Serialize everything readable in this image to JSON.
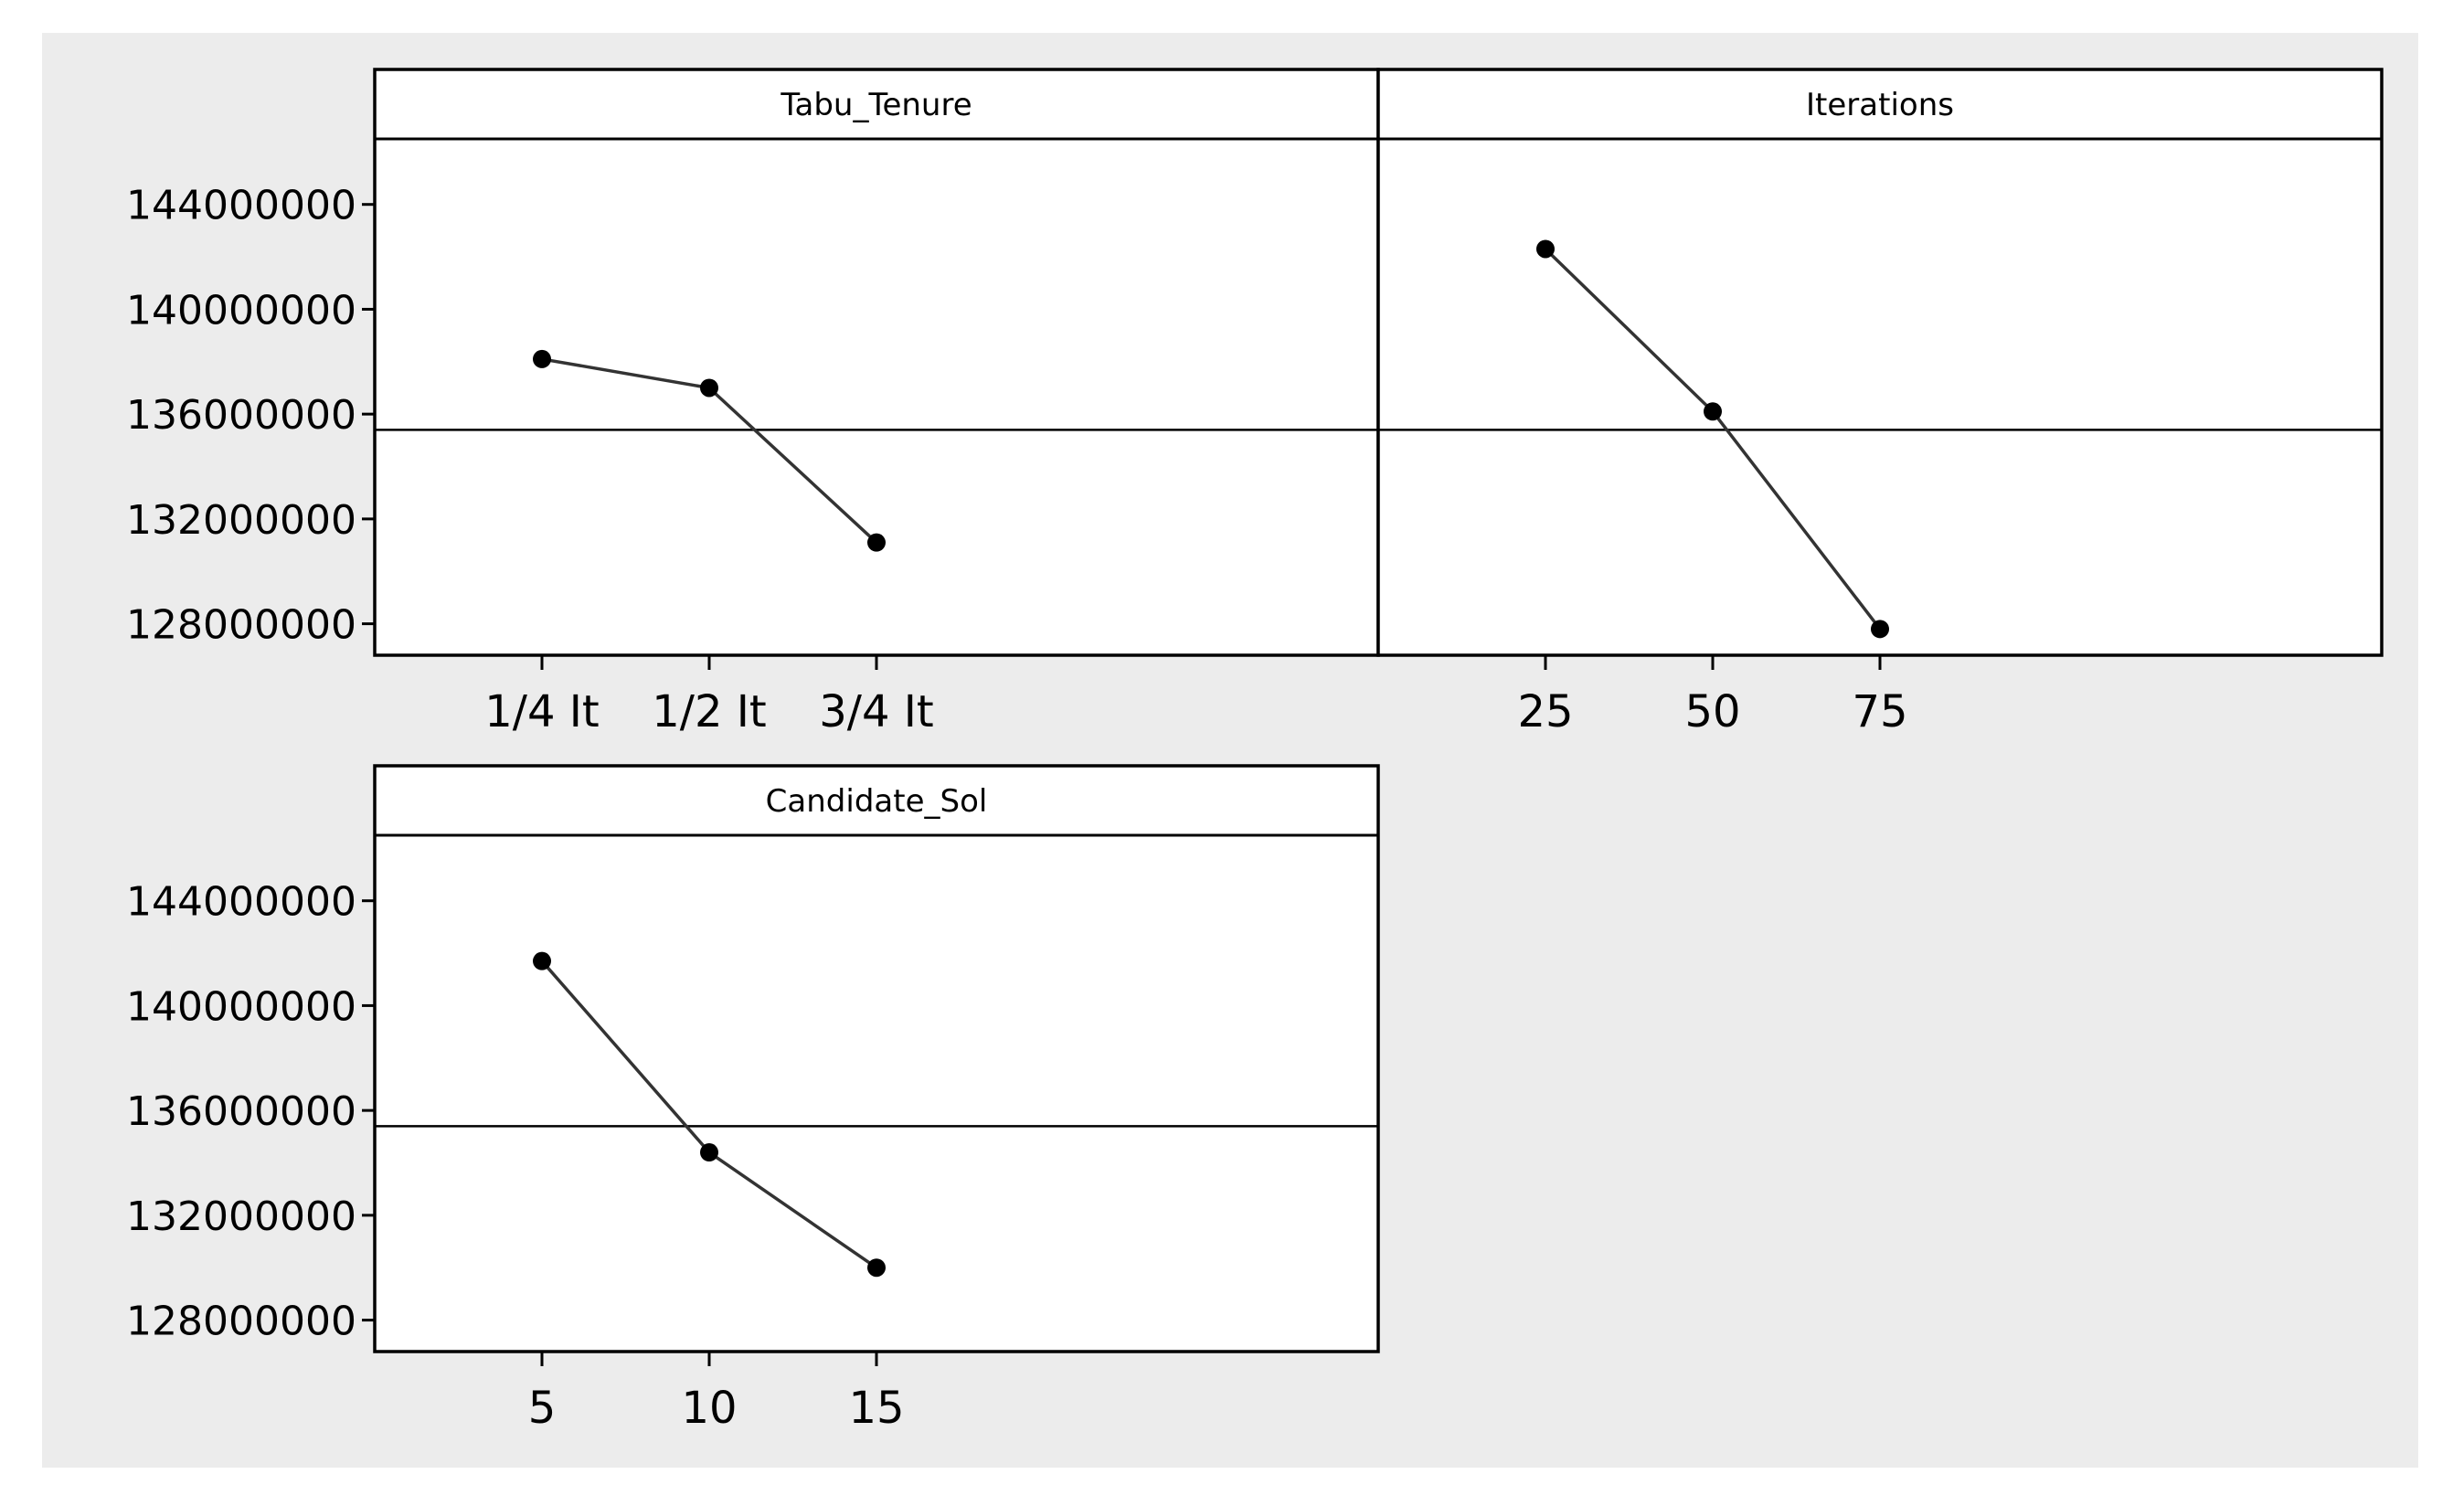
{
  "chart_data": {
    "type": "line",
    "layout": "panel-grid-2x2",
    "colors": {
      "background": "#ececec",
      "plot_background": "#ffffff",
      "line": "#333333",
      "marker": "#000000",
      "frame": "#000000"
    },
    "y_ticks": [
      128000000,
      132000000,
      136000000,
      140000000,
      144000000
    ],
    "y_tick_labels": [
      "128000000",
      "132000000",
      "136000000",
      "140000000",
      "144000000"
    ],
    "ylim": [
      126800000,
      146500000
    ],
    "reference_line": 135400000,
    "panels": [
      {
        "title": "Tabu_Tenure",
        "categories": [
          "1/4 It",
          "1/2 It",
          "3/4 It"
        ],
        "values": [
          138100000,
          137000000,
          131100000
        ]
      },
      {
        "title": "Iterations",
        "categories": [
          "25",
          "50",
          "75"
        ],
        "values": [
          142300000,
          136100000,
          127800000
        ]
      },
      {
        "title": "Candidate_Sol",
        "categories": [
          "5",
          "10",
          "15"
        ],
        "values": [
          141700000,
          134400000,
          130000000
        ]
      }
    ]
  }
}
